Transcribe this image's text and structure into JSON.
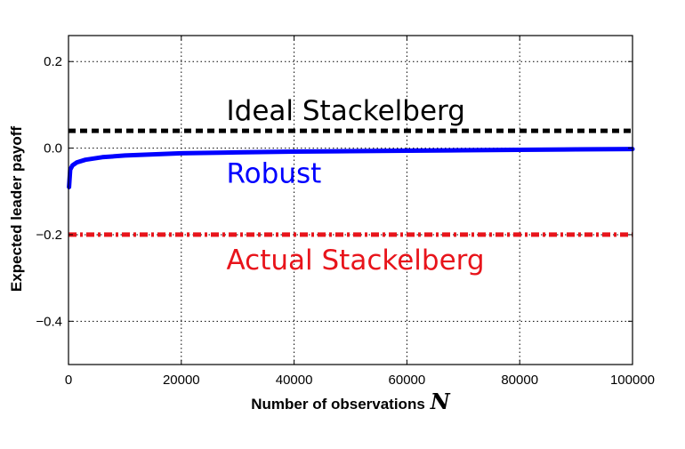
{
  "chart_data": {
    "type": "line",
    "xlabel": "Number of observations",
    "xlabel_var": "N",
    "ylabel": "Expected leader payoff",
    "xlim": [
      0,
      100000
    ],
    "ylim": [
      -0.5,
      0.26
    ],
    "xticks": [
      0,
      20000,
      40000,
      60000,
      80000,
      100000
    ],
    "xtick_labels": [
      "0",
      "20000",
      "40000",
      "60000",
      "80000",
      "100000"
    ],
    "yticks": [
      -0.4,
      -0.2,
      0.0,
      0.2
    ],
    "ytick_labels": [
      "−0.4",
      "−0.2",
      "0.0",
      "0.2"
    ],
    "grid": true,
    "series": [
      {
        "name": "Ideal Stackelberg",
        "color": "#000000",
        "style": "dashed",
        "x": [
          0,
          100000
        ],
        "y": [
          0.04,
          0.04
        ]
      },
      {
        "name": "Robust",
        "color": "#0000ff",
        "style": "solid",
        "x": [
          100,
          300,
          700,
          1500,
          3000,
          6000,
          10000,
          20000,
          30000,
          40000,
          50000,
          60000,
          70000,
          80000,
          90000,
          100000
        ],
        "y": [
          -0.09,
          -0.05,
          -0.04,
          -0.033,
          -0.027,
          -0.021,
          -0.017,
          -0.012,
          -0.01,
          -0.008,
          -0.007,
          -0.006,
          -0.005,
          -0.004,
          -0.003,
          -0.002
        ]
      },
      {
        "name": "Actual Stackelberg",
        "color": "#e8141b",
        "style": "dashdot",
        "x": [
          0,
          100000
        ],
        "y": [
          -0.2,
          -0.2
        ]
      }
    ],
    "annotations": [
      {
        "text": "Ideal Stackelberg",
        "color": "#000000",
        "x": 28000,
        "y": 0.065
      },
      {
        "text": "Robust",
        "color": "#0000ff",
        "x": 28000,
        "y": -0.08
      },
      {
        "text": "Actual Stackelberg",
        "color": "#e8141b",
        "x": 28000,
        "y": -0.28
      }
    ]
  }
}
